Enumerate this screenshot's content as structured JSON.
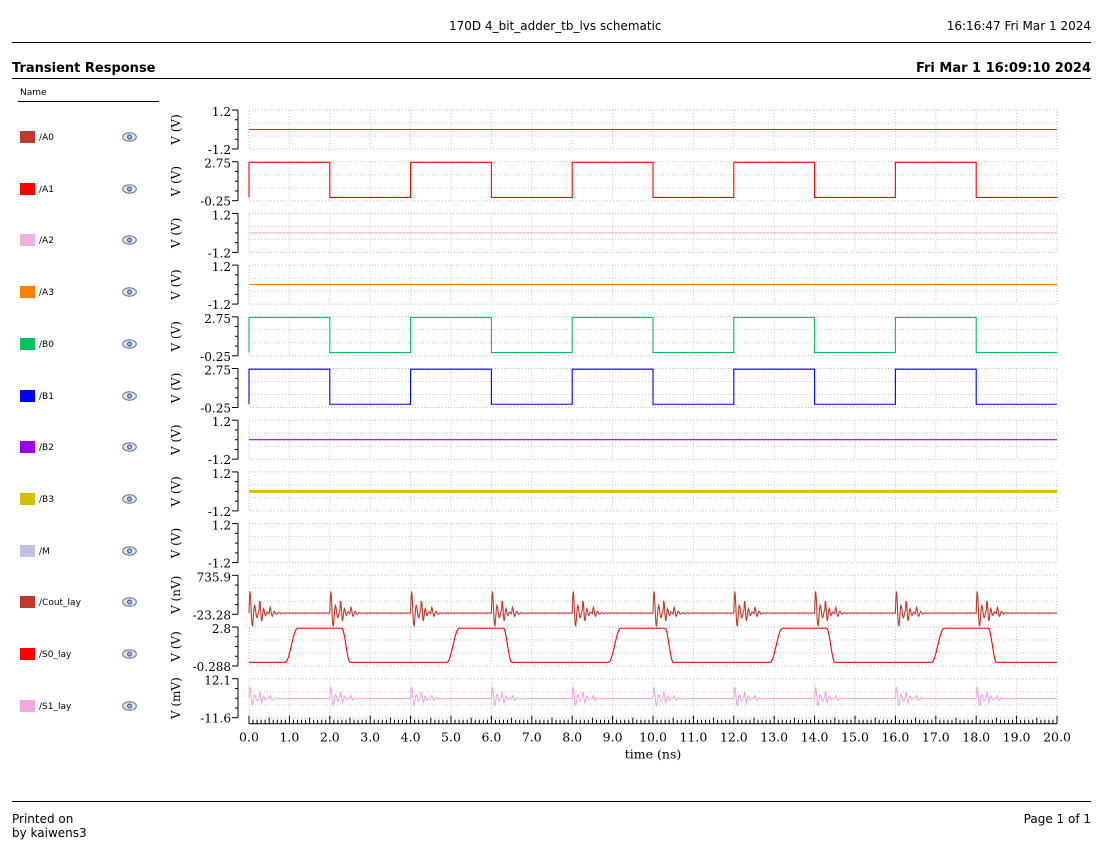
{
  "header": {
    "doc_title": "170D 4_bit_adder_tb_lvs schematic",
    "print_time": "16:16:47  Fri Mar 1 2024"
  },
  "section": {
    "title": "Transient Response",
    "date": "Fri Mar 1 16:09:10 2024",
    "name_header": "Name"
  },
  "footer": {
    "printed_on": "Printed on",
    "printed_by": "by kaiwens3",
    "page": "Page 1 of 1"
  },
  "icons": {
    "visibility": "eye-icon"
  },
  "chart_data": {
    "type": "line",
    "xlabel": "time (ns)",
    "xlim": [
      0,
      20
    ],
    "x_ticks": [
      "0.0",
      "1.0",
      "2.0",
      "3.0",
      "4.0",
      "5.0",
      "6.0",
      "7.0",
      "8.0",
      "9.0",
      "10.0",
      "11.0",
      "12.0",
      "13.0",
      "14.0",
      "15.0",
      "16.0",
      "17.0",
      "18.0",
      "19.0",
      "20.0"
    ],
    "grid": true,
    "series": [
      {
        "name": "/A0",
        "color": "#c0392b",
        "ylabel": "V (V)",
        "ytick_top": "1.2",
        "ytick_bottom": "-1.2",
        "ylim": [
          -1.2,
          1.2
        ],
        "kind": "constant",
        "value": 0.0
      },
      {
        "name": "/A1",
        "color": "#ff0000",
        "ylabel": "V (V)",
        "ytick_top": "2.75",
        "ytick_bottom": "-0.25",
        "ylim": [
          -0.25,
          2.75
        ],
        "kind": "square",
        "period": 4.0,
        "high": 2.7,
        "low": 0.0,
        "start_high": true
      },
      {
        "name": "/A2",
        "color": "#f0b0e0",
        "ylabel": "V (V)",
        "ytick_top": "1.2",
        "ytick_bottom": "-1.2",
        "ylim": [
          -1.2,
          1.2
        ],
        "kind": "constant",
        "value": 0.0
      },
      {
        "name": "/A3",
        "color": "#ff8000",
        "ylabel": "V (V)",
        "ytick_top": "1.2",
        "ytick_bottom": "-1.2",
        "ylim": [
          -1.2,
          1.2
        ],
        "kind": "constant",
        "value": 0.0
      },
      {
        "name": "/B0",
        "color": "#00c060",
        "ylabel": "V (V)",
        "ytick_top": "2.75",
        "ytick_bottom": "-0.25",
        "ylim": [
          -0.25,
          2.75
        ],
        "kind": "square",
        "period": 4.0,
        "high": 2.7,
        "low": 0.0,
        "start_high": true
      },
      {
        "name": "/B1",
        "color": "#0000ff",
        "ylabel": "V (V)",
        "ytick_top": "2.75",
        "ytick_bottom": "-0.25",
        "ylim": [
          -0.25,
          2.75
        ],
        "kind": "square",
        "period": 4.0,
        "high": 2.7,
        "low": 0.0,
        "start_high": true
      },
      {
        "name": "/B2",
        "color": "#9900ee",
        "ylabel": "V (V)",
        "ytick_top": "1.2",
        "ytick_bottom": "-1.2",
        "ylim": [
          -1.2,
          1.2
        ],
        "kind": "constant",
        "value": 0.0
      },
      {
        "name": "/B3",
        "color": "#d4c000",
        "ylabel": "V (V)",
        "ytick_top": "1.2",
        "ytick_bottom": "-1.2",
        "ylim": [
          -1.2,
          1.2
        ],
        "kind": "constant",
        "value": 0.0
      },
      {
        "name": "/M",
        "color": "#b8c4e0",
        "ylabel": "V (V)",
        "ytick_top": "1.2",
        "ytick_bottom": "-1.2",
        "ylim": [
          -1.2,
          1.2
        ],
        "kind": "none"
      },
      {
        "name": "/Cout_lay",
        "color": "#c0392b",
        "ylabel": "V (nV)",
        "ytick_top": "735.9",
        "ytick_bottom": "-23.28",
        "ylim": [
          -23.28,
          735.9
        ],
        "kind": "glitch",
        "baseline": 0.0,
        "amp": 600
      },
      {
        "name": "/S0_lay",
        "color": "#ff0000",
        "ylabel": "V (V)",
        "ytick_top": "2.8",
        "ytick_bottom": "-0.288",
        "ylim": [
          -0.288,
          2.8
        ],
        "kind": "slow_square",
        "high": 2.7,
        "low": 0.0,
        "period": 4.0,
        "rise_start": 0.9,
        "rise_end": 1.2,
        "fall_start": 2.3,
        "fall_end": 2.5
      },
      {
        "name": "/S1_lay",
        "color": "#f0a8e0",
        "ylabel": "V (mV)",
        "ytick_top": "12.1",
        "ytick_bottom": "-11.6",
        "ylim": [
          -11.6,
          12.1
        ],
        "kind": "glitch",
        "baseline": 0.0,
        "amp": 10
      }
    ]
  }
}
